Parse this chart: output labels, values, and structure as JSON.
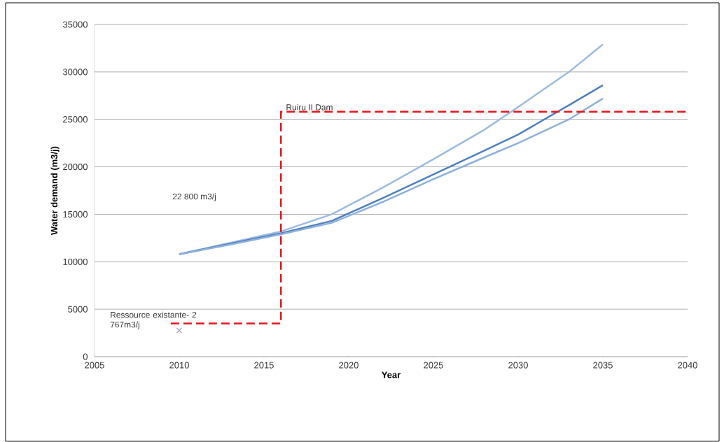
{
  "chart_data": {
    "type": "line",
    "xlabel": "Year",
    "ylabel": "Water demand (m3/j)",
    "xlim": [
      2005,
      2040
    ],
    "ylim": [
      0,
      35000
    ],
    "xticks": [
      2005,
      2010,
      2015,
      2020,
      2025,
      2030,
      2035,
      2040
    ],
    "yticks": [
      0,
      5000,
      10000,
      15000,
      20000,
      25000,
      30000,
      35000
    ],
    "grid": "y",
    "series": [
      {
        "color": "#9dbbe0",
        "x": [
          2010,
          2013,
          2016,
          2019,
          2022,
          2025,
          2028,
          2030,
          2033,
          2035
        ],
        "values": [
          10800,
          12000,
          13200,
          15000,
          17800,
          20800,
          23900,
          26300,
          30000,
          32900
        ]
      },
      {
        "color": "#4f7fbf",
        "x": [
          2010,
          2013,
          2016,
          2019,
          2022,
          2025,
          2028,
          2030,
          2033,
          2035
        ],
        "values": [
          10800,
          11900,
          13000,
          14300,
          16700,
          19200,
          21700,
          23400,
          26500,
          28600
        ]
      },
      {
        "color": "#8eb0dc",
        "x": [
          2010,
          2013,
          2016,
          2019,
          2022,
          2025,
          2028,
          2030,
          2033,
          2035
        ],
        "values": [
          10800,
          11800,
          12900,
          14100,
          16300,
          18700,
          21000,
          22500,
          25000,
          27200
        ]
      },
      {
        "color": "#e8141c",
        "line_style": "dashed",
        "x": [
          2009.5,
          2016,
          2016,
          2040
        ],
        "values": [
          3500,
          3500,
          25800,
          25800
        ]
      },
      {
        "type": "scatter",
        "marker": "cross",
        "color": "#a593c8",
        "x": [
          2010
        ],
        "values": [
          2767
        ]
      }
    ],
    "annotations": [
      {
        "text": "Ruiru II Dam",
        "x": 2016,
        "y": 25800
      },
      "22 800  m3/j",
      {
        "text": "Ressource existante- 2 767m3/j",
        "x": 2010,
        "y": 2767
      }
    ]
  }
}
